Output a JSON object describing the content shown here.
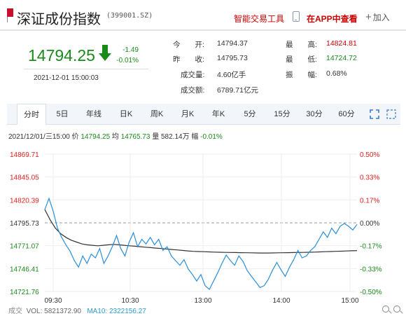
{
  "header": {
    "title": "深证成份指数",
    "code": "(399001.SZ)",
    "tool_link": "智能交易工具",
    "app_link": "在APP中查看",
    "add_label": "加入"
  },
  "quote": {
    "price": "14794.25",
    "change": "-1.49",
    "change_pct": "-0.01%",
    "datetime": "2021-12-01  15:00:03",
    "open_label": "今　　开:",
    "open": "14794.37",
    "prev_label": "昨　　收:",
    "prev": "14795.73",
    "volume_label": "成交量:",
    "volume": "4.60亿手",
    "amount_label": "成交额:",
    "amount": "6789.71亿元",
    "high_label": "最　　高:",
    "high": "14824.81",
    "low_label": "最　　低:",
    "low": "14724.72",
    "amp_label": "振　　幅:",
    "amp": "0.68%"
  },
  "tabs": [
    "分时",
    "5日",
    "年线",
    "日K",
    "周K",
    "月K",
    "年K",
    "5分",
    "15分",
    "30分",
    "60分"
  ],
  "info_line": {
    "datetime": "2021/12/01/三15:00",
    "price_label": "价",
    "price": "14794.25",
    "avg_label": "均",
    "avg": "14765.73",
    "vol_label": "量",
    "vol": "582.14万",
    "pct_label": "幅",
    "pct": "-0.01%"
  },
  "volume_bar": {
    "label": "成交",
    "vol_text": "VOL: 5821372.90",
    "ma_text": "MA10: 2322156.27"
  },
  "colors": {
    "up": "#e02020",
    "down": "#1a8a1a",
    "price_line": "#2a8fd8",
    "avg_line": "#333333"
  },
  "chart_data": {
    "type": "line",
    "x_ticks": [
      "09:30",
      "10:30",
      "13:00",
      "14:00",
      "15:00"
    ],
    "y_left_ticks": [
      "14869.71",
      "14845.05",
      "14820.39",
      "14795.73",
      "14771.07",
      "14746.41",
      "14721.76"
    ],
    "y_right_ticks": [
      "0.50%",
      "0.33%",
      "0.17%",
      "0.00%",
      "-0.17%",
      "-0.33%",
      "-0.50%"
    ],
    "ylim": [
      14721.76,
      14869.71
    ],
    "reference": 14795.73,
    "series": [
      {
        "role": "price",
        "values": [
          14810,
          14822,
          14808,
          14790,
          14780,
          14772,
          14765,
          14755,
          14748,
          14760,
          14752,
          14762,
          14758,
          14768,
          14752,
          14760,
          14770,
          14782,
          14768,
          14760,
          14775,
          14785,
          14770,
          14778,
          14773,
          14780,
          14772,
          14778,
          14766,
          14770,
          14760,
          14755,
          14750,
          14756,
          14746,
          14740,
          14733,
          14740,
          14728,
          14724,
          14733,
          14742,
          14752,
          14761,
          14755,
          14750,
          14760,
          14754,
          14744,
          14738,
          14732,
          14726,
          14728,
          14735,
          14745,
          14753,
          14745,
          14738,
          14748,
          14756,
          14766,
          14758,
          14760,
          14766,
          14770,
          14778,
          14786,
          14780,
          14790,
          14784,
          14792,
          14795,
          14792,
          14788,
          14794
        ]
      },
      {
        "role": "average",
        "values": [
          14810,
          14799,
          14790,
          14784,
          14780,
          14777,
          14775,
          14773,
          14772,
          14771.5,
          14771,
          14771.5,
          14772,
          14772.5,
          14772,
          14771.5,
          14771,
          14770.5,
          14770,
          14769.5,
          14769,
          14768.5,
          14768,
          14767.5,
          14767,
          14766.5,
          14766,
          14765.5,
          14765,
          14764.8,
          14764.6,
          14764.4,
          14764.2,
          14764,
          14763.9,
          14763.8,
          14763.7,
          14763.6,
          14763.5,
          14763.4,
          14763.3,
          14763.2,
          14763.2,
          14763.3,
          14763.4,
          14763.5,
          14763.6,
          14763.7,
          14763.8,
          14763.9,
          14764,
          14764.2,
          14764.4,
          14764.6,
          14764.8,
          14765,
          14765.2,
          14765.4,
          14765.6,
          14765.73
        ]
      }
    ]
  }
}
